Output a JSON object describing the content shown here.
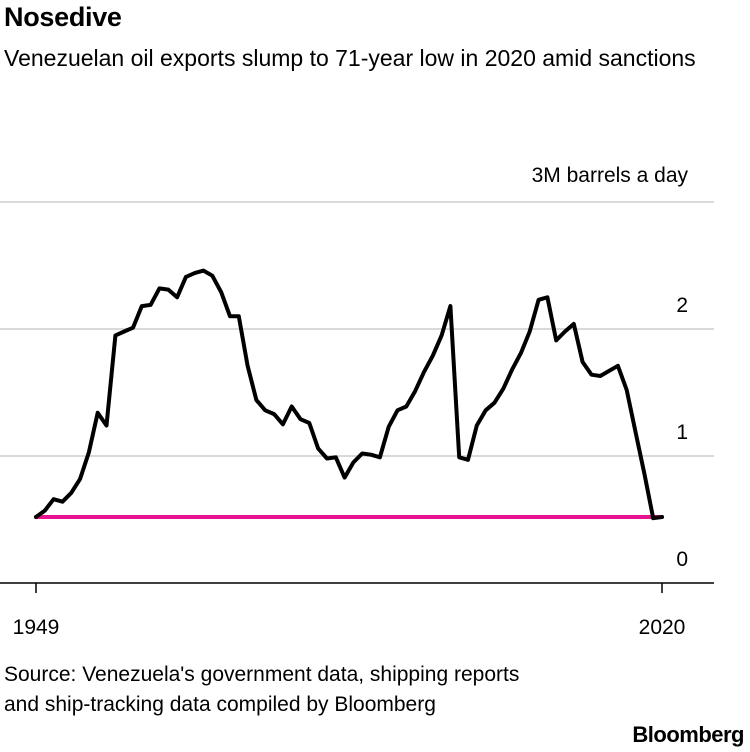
{
  "header": {
    "title": "Nosedive",
    "subtitle": "Venezuelan oil exports slump to 71-year low in 2020 amid sanctions"
  },
  "footer": {
    "source": "Source: Venezuela's government data, shipping reports and ship-tracking data compiled by Bloomberg",
    "brand": "Bloomberg"
  },
  "chart_data": {
    "type": "line",
    "title": "Nosedive",
    "subtitle": "Venezuelan oil exports slump to 71-year low in 2020 amid sanctions",
    "ylabel": "3M barrels a day",
    "y_tick_labels": [
      "0",
      "1",
      "2",
      "3M barrels a day"
    ],
    "y_ticks": [
      0,
      1,
      2,
      3
    ],
    "x_tick_labels": [
      "1949",
      "2020"
    ],
    "x_ticks": [
      1949,
      2020
    ],
    "xlim": [
      1949,
      2020
    ],
    "ylim": [
      0,
      3
    ],
    "grid": true,
    "colors": {
      "line": "#000000",
      "reference": "#e8138e",
      "grid": "#d9d9d9",
      "axis": "#000000"
    },
    "series": [
      {
        "x": [
          1949,
          1950,
          1951,
          1952,
          1953,
          1954,
          1955,
          1956,
          1957,
          1958,
          1959,
          1960,
          1961,
          1962,
          1963,
          1964,
          1965,
          1966,
          1967,
          1968,
          1969,
          1970,
          1971,
          1972,
          1973,
          1974,
          1975,
          1976,
          1977,
          1978,
          1979,
          1980,
          1981,
          1982,
          1983,
          1984,
          1985,
          1986,
          1987,
          1988,
          1989,
          1990,
          1991,
          1992,
          1993,
          1994,
          1995,
          1996,
          1997,
          1998,
          1999,
          2000,
          2001,
          2002,
          2003,
          2004,
          2005,
          2006,
          2007,
          2008,
          2009,
          2010,
          2011,
          2012,
          2013,
          2014,
          2015,
          2016,
          2017,
          2018,
          2019,
          2020
        ],
        "values": [
          0.52,
          0.57,
          0.66,
          0.64,
          0.71,
          0.82,
          1.03,
          1.34,
          1.24,
          1.95,
          1.98,
          2.01,
          2.18,
          2.19,
          2.32,
          2.31,
          2.25,
          2.41,
          2.44,
          2.46,
          2.42,
          2.29,
          2.1,
          2.1,
          1.71,
          1.44,
          1.36,
          1.33,
          1.25,
          1.39,
          1.29,
          1.26,
          1.06,
          0.98,
          0.99,
          0.83,
          0.95,
          1.02,
          1.01,
          0.99,
          1.23,
          1.36,
          1.39,
          1.51,
          1.66,
          1.79,
          1.95,
          2.18,
          0.99,
          0.97,
          1.24,
          1.36,
          1.42,
          1.53,
          1.68,
          1.81,
          1.98,
          2.23,
          2.25,
          1.91,
          1.98,
          2.04,
          1.74,
          1.64,
          1.63,
          1.67,
          1.71,
          1.52,
          1.19,
          0.86,
          0.51,
          0.52
        ],
        "reference_value": 0.52
      }
    ]
  }
}
